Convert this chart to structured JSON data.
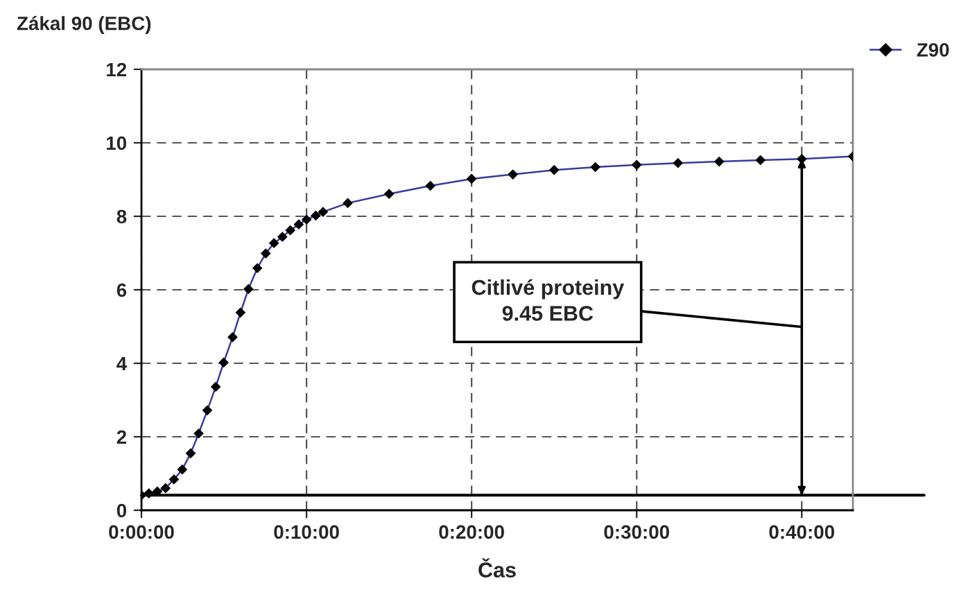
{
  "chart_data": {
    "type": "line",
    "ylabel": "Zákal 90 (EBC)",
    "xlabel": "Čas",
    "x": [
      0,
      0.0075,
      0.016,
      0.0243,
      0.0328,
      0.0412,
      0.0497,
      0.0578,
      0.0665,
      0.075,
      0.083,
      0.092,
      0.1,
      0.108,
      0.117,
      0.1255,
      0.1338,
      0.1423,
      0.1503,
      0.1588,
      0.1667,
      0.176,
      0.1833,
      0.2083,
      0.25,
      0.2917,
      0.3333,
      0.375,
      0.4167,
      0.4583,
      0.5,
      0.5417,
      0.5833,
      0.625,
      0.6667,
      0.7183
    ],
    "series": [
      {
        "name": "Z90",
        "color": "#3a3aa0",
        "values": [
          0.41,
          0.46,
          0.51,
          0.6,
          0.84,
          1.11,
          1.55,
          2.09,
          2.72,
          3.36,
          4.02,
          4.71,
          5.38,
          6.02,
          6.59,
          6.99,
          7.27,
          7.44,
          7.62,
          7.78,
          7.91,
          8.02,
          8.12,
          8.36,
          8.61,
          8.83,
          9.02,
          9.14,
          9.26,
          9.34,
          9.4,
          9.45,
          9.49,
          9.53,
          9.56,
          9.63
        ]
      }
    ],
    "marker": "diamond",
    "line_style": "solid",
    "xlim": [
      0,
      0.7183
    ],
    "ylim": [
      0,
      12
    ],
    "xticks": [
      {
        "value": 0,
        "label": "0:00:00"
      },
      {
        "value": 0.1666667,
        "label": "0:10:00"
      },
      {
        "value": 0.3333333,
        "label": "0:20:00"
      },
      {
        "value": 0.5,
        "label": "0:30:00"
      },
      {
        "value": 0.6666667,
        "label": "0:40:00"
      }
    ],
    "yticks": [
      0,
      2,
      4,
      6,
      8,
      10,
      12
    ],
    "grid": true,
    "legend": "top right",
    "ref_lines": [
      {
        "axis": "y",
        "value": 0.41,
        "color": "#000000",
        "line_style": "solid"
      },
      {
        "axis": "x",
        "value": 0.6667,
        "color": "#000000",
        "line_style": "solid"
      }
    ],
    "annotations": [
      {
        "text": "Citlivé proteiny\n9.45 EBC",
        "x": 0.6667,
        "y": 4.99
      }
    ]
  }
}
